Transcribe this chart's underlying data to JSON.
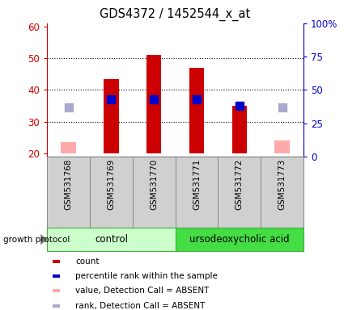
{
  "title": "GDS4372 / 1452544_x_at",
  "samples": [
    "GSM531768",
    "GSM531769",
    "GSM531770",
    "GSM531771",
    "GSM531772",
    "GSM531773"
  ],
  "bar_bottom": 20,
  "count_values": [
    null,
    43.5,
    51.0,
    47.0,
    35.0,
    null
  ],
  "count_absent": [
    23.5,
    null,
    null,
    null,
    null,
    24.0
  ],
  "percentile_values": [
    null,
    37.0,
    37.0,
    37.0,
    35.0,
    null
  ],
  "percentile_absent": [
    34.5,
    null,
    null,
    null,
    null,
    34.5
  ],
  "ylim_left": [
    19,
    61
  ],
  "ylim_right": [
    0,
    100
  ],
  "yticks_left": [
    20,
    30,
    40,
    50,
    60
  ],
  "yticks_right": [
    0,
    25,
    50,
    75,
    100
  ],
  "ytick_labels_left": [
    "20",
    "30",
    "40",
    "50",
    "60"
  ],
  "ytick_labels_right": [
    "0",
    "25",
    "50",
    "75",
    "100%"
  ],
  "left_axis_color": "#cc0000",
  "right_axis_color": "#0000cc",
  "bar_color_present": "#cc0000",
  "bar_color_absent": "#ffaaaa",
  "square_color_present": "#0000cc",
  "square_color_absent": "#aaaacc",
  "bar_width": 0.35,
  "square_size": 55,
  "legend_items": [
    "count",
    "percentile rank within the sample",
    "value, Detection Call = ABSENT",
    "rank, Detection Call = ABSENT"
  ],
  "legend_colors": [
    "#cc0000",
    "#0000cc",
    "#ffaaaa",
    "#aaaacc"
  ],
  "group_label_text": "growth protocol",
  "control_label": "control",
  "treatment_label": "ursodeoxycholic acid",
  "control_color": "#ccffcc",
  "treatment_color": "#44dd44",
  "sample_box_color": "#d0d0d0",
  "sample_box_edge": "#888888",
  "grid_color": "#000000"
}
